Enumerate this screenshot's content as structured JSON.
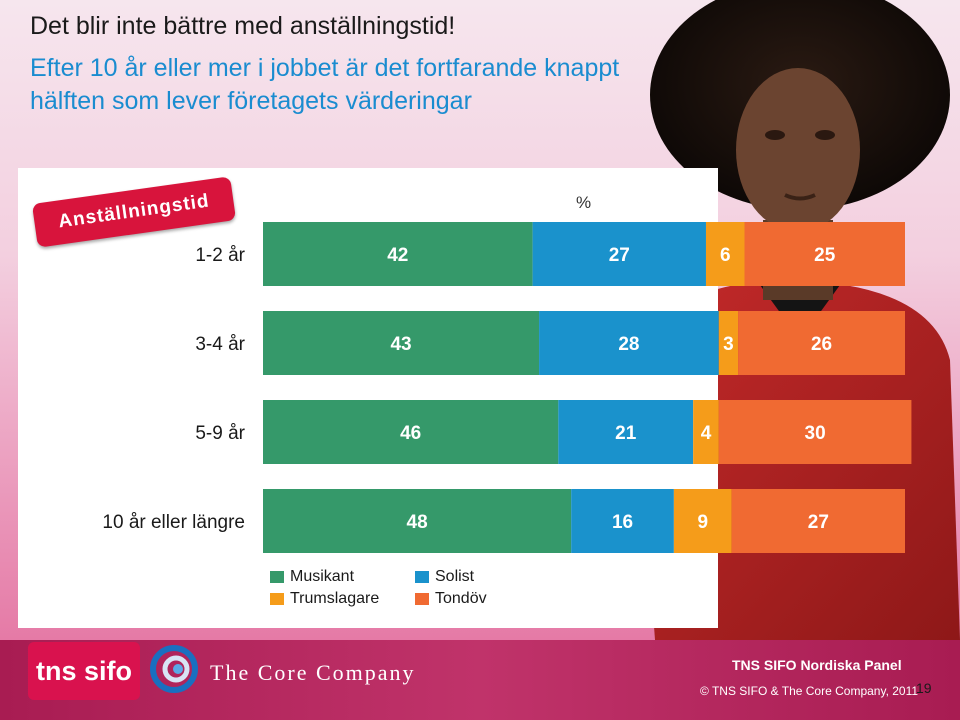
{
  "slide": {
    "title": "Det blir inte bättre med anställningstid!",
    "subtitle": "Efter 10 år eller mer i jobbet är det fortfarande knappt hälften som lever företagets värderingar",
    "badge": "Anställningstid",
    "page_number": "19"
  },
  "chart_data": {
    "type": "bar",
    "orientation": "horizontal-stacked-100",
    "unit_label": "%",
    "categories": [
      "1-2 år",
      "3-4 år",
      "5-9 år",
      "10 år eller längre"
    ],
    "series": [
      {
        "name": "Musikant",
        "color": "#35996a",
        "values": [
          42,
          43,
          46,
          48
        ]
      },
      {
        "name": "Solist",
        "color": "#1a92cc",
        "values": [
          27,
          28,
          21,
          16
        ]
      },
      {
        "name": "Trumslagare",
        "color": "#f59c1a",
        "values": [
          6,
          3,
          4,
          9
        ]
      },
      {
        "name": "Tondöv",
        "color": "#f06a32",
        "values": [
          25,
          26,
          30,
          27
        ]
      }
    ],
    "xlim": [
      0,
      100
    ],
    "legend_position": "bottom"
  },
  "footer": {
    "tns_logo": "tns sifo",
    "core_logo": "The Core Company",
    "panel_name": "TNS SIFO Nordiska Panel",
    "copyright": "© TNS SIFO & The Core Company, 2011"
  },
  "colors": {
    "footer_bg": "#b12358",
    "badge_bg": "#d8143c",
    "subtitle_text": "#1a8cd0"
  }
}
